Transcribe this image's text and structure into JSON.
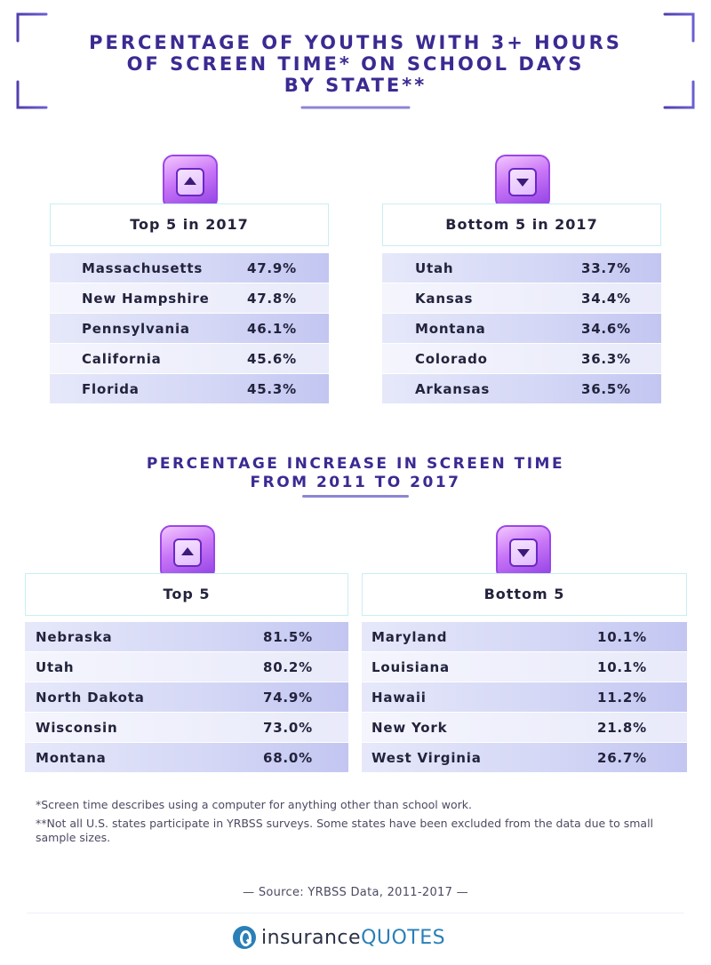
{
  "title_lines": [
    "PERCENTAGE OF YOUTHS WITH 3+ HOURS",
    "OF SCREEN TIME* ON SCHOOL DAYS",
    "BY STATE**"
  ],
  "section2_lines": [
    "PERCENTAGE INCREASE IN SCREEN TIME",
    "FROM 2011 TO 2017"
  ],
  "colors": {
    "title": "#3b2a92",
    "badge": "#c975f7",
    "row_dark": "#c3c6f1",
    "row_light": "#f4f5fd",
    "logo_blue": "#2a7fb8"
  },
  "icons": {
    "up": "arrow-up-icon",
    "down": "arrow-down-icon"
  },
  "chart_data": [
    {
      "type": "table",
      "title": "Top 5 in 2017",
      "rows": [
        {
          "state": "Massachusetts",
          "value": "47.9%"
        },
        {
          "state": "New Hampshire",
          "value": "47.8%"
        },
        {
          "state": "Pennsylvania",
          "value": "46.1%"
        },
        {
          "state": "California",
          "value": "45.6%"
        },
        {
          "state": "Florida",
          "value": "45.3%"
        }
      ]
    },
    {
      "type": "table",
      "title": "Bottom 5 in 2017",
      "rows": [
        {
          "state": "Utah",
          "value": "33.7%"
        },
        {
          "state": "Kansas",
          "value": "34.4%"
        },
        {
          "state": "Montana",
          "value": "34.6%"
        },
        {
          "state": "Colorado",
          "value": "36.3%"
        },
        {
          "state": "Arkansas",
          "value": "36.5%"
        }
      ]
    },
    {
      "type": "table",
      "title": "Top 5",
      "rows": [
        {
          "state": "Nebraska",
          "value": "81.5%"
        },
        {
          "state": "Utah",
          "value": "80.2%"
        },
        {
          "state": "North Dakota",
          "value": "74.9%"
        },
        {
          "state": "Wisconsin",
          "value": "73.0%"
        },
        {
          "state": "Montana",
          "value": "68.0%"
        }
      ]
    },
    {
      "type": "table",
      "title": "Bottom 5",
      "rows": [
        {
          "state": "Maryland",
          "value": "10.1%"
        },
        {
          "state": "Louisiana",
          "value": "10.1%"
        },
        {
          "state": "Hawaii",
          "value": "11.2%"
        },
        {
          "state": "New York",
          "value": "21.8%"
        },
        {
          "state": "West Virginia",
          "value": "26.7%"
        }
      ]
    }
  ],
  "notes": [
    "*Screen time describes using a computer for anything other than school work.",
    "**Not all U.S. states participate in YRBSS surveys. Some states have been excluded from the data due to small sample sizes."
  ],
  "source": "—  Source: YRBSS Data, 2011-2017 —",
  "logo": {
    "part1": "insurance",
    "part2": "QUOTES"
  }
}
